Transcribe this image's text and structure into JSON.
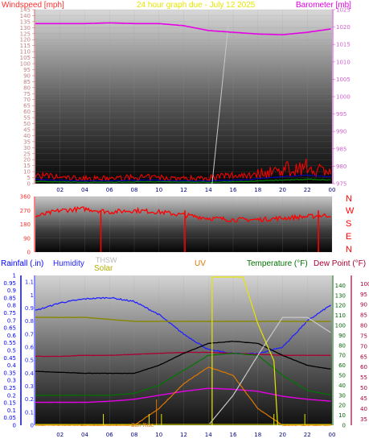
{
  "header": {
    "wind_label": "Windspeed [mph]",
    "title": "24 hour graph due - July 12 2025",
    "baro_label": "Barometer [mb]"
  },
  "legend": {
    "rainfall": "Rainfall (.in)",
    "humidity": "Humidity",
    "thsw": "THSW",
    "solar": "Solar",
    "uv": "UV",
    "temperature": "Temperature (°F)",
    "dew_point": "Dew Point (°F)",
    "sun_rise": "Sun Rise"
  },
  "direction_labels": [
    "N",
    "W",
    "S",
    "E",
    "N"
  ],
  "x_ticks": [
    "02",
    "04",
    "06",
    "08",
    "10",
    "12",
    "14",
    "16",
    "18",
    "20",
    "22",
    "00"
  ],
  "colors": {
    "wind": "#ff0000",
    "barometer": "#e600e6",
    "humidity": "#2222ff",
    "temperature": "#000000",
    "dew_point": "#aa0033",
    "solar": "#e6e600",
    "thsw": "#c8c8c8",
    "uv": "#e07800",
    "rain": "#0000ff",
    "left_axis_wind": "#d0a0a0",
    "right_axis_baro": "#e07ae0"
  },
  "chart_data": [
    {
      "type": "line",
      "title": "24 hour graph due - July 12 2025",
      "ylabel": "Windspeed [mph]",
      "y2label": "Barometer [mb]",
      "ylim": [
        0,
        145
      ],
      "y2lim": [
        975,
        1025
      ],
      "yticks": [
        0,
        5,
        10,
        15,
        20,
        25,
        30,
        35,
        40,
        45,
        50,
        55,
        60,
        65,
        70,
        75,
        80,
        85,
        90,
        95,
        100,
        105,
        110,
        115,
        120,
        125,
        130,
        135,
        140,
        145
      ],
      "y2ticks": [
        975,
        980,
        985,
        990,
        995,
        1000,
        1005,
        1010,
        1015,
        1020,
        1025
      ],
      "x_hours": [
        0,
        2,
        4,
        6,
        8,
        10,
        12,
        14,
        16,
        18,
        20,
        22,
        24
      ],
      "series": [
        {
          "name": "Windspeed",
          "axis": "left",
          "values": [
            5,
            4,
            3,
            3,
            4,
            4,
            3,
            3,
            4,
            6,
            9,
            11,
            9
          ]
        },
        {
          "name": "Gust",
          "axis": "left",
          "values": [
            8,
            6,
            5,
            5,
            6,
            6,
            5,
            6,
            8,
            10,
            14,
            16,
            12
          ]
        },
        {
          "name": "Barometer",
          "axis": "right",
          "values": [
            1021.0,
            1021.0,
            1021.0,
            1021.2,
            1021.0,
            1021.0,
            1020.4,
            1019.0,
            1018.5,
            1018.0,
            1017.8,
            1018.5,
            1019.5
          ]
        }
      ]
    },
    {
      "type": "line",
      "ylabel": "Wind direction",
      "yticks": [
        0,
        90,
        180,
        270,
        360
      ],
      "ylim": [
        0,
        360
      ],
      "x_hours": [
        0,
        2,
        4,
        6,
        8,
        10,
        12,
        14,
        16,
        18,
        20,
        22,
        24
      ],
      "series": [
        {
          "name": "Direction",
          "values": [
            230,
            270,
            280,
            260,
            270,
            260,
            240,
            220,
            210,
            210,
            220,
            230,
            240
          ]
        }
      ]
    },
    {
      "type": "line",
      "left_axis": {
        "label": "Rainfall (.in)",
        "ticks": [
          0,
          0.05,
          0.1,
          0.15,
          0.2,
          0.25,
          0.3,
          0.35,
          0.4,
          0.45,
          0.5,
          0.55,
          0.6,
          0.65,
          0.7,
          0.75,
          0.8,
          0.85,
          0.9,
          0.95,
          1
        ]
      },
      "humidity_axis": {
        "label": "Humidity",
        "ticks": [
          0,
          0.1,
          0.2,
          0.3,
          0.4,
          0.5,
          0.6,
          0.7,
          0.8,
          0.9,
          1,
          1.1
        ]
      },
      "temp_axis": {
        "label": "Temperature (°F)",
        "ticks": [
          0,
          10,
          20,
          30,
          40,
          50,
          60,
          70,
          80,
          90,
          100,
          110,
          120,
          130,
          140
        ],
        "ylim": [
          0,
          150
        ]
      },
      "dew_axis": {
        "label": "Dew Point (°F)",
        "ticks": [
          35,
          40,
          45,
          50,
          55,
          60,
          65,
          70,
          75,
          80,
          85,
          90,
          95,
          100
        ],
        "ylim": [
          32,
          104
        ]
      },
      "x_hours": [
        0,
        2,
        4,
        6,
        8,
        10,
        12,
        14,
        16,
        18,
        20,
        22,
        24
      ],
      "series": [
        {
          "name": "Humidity",
          "values": [
            0.88,
            0.94,
            0.97,
            0.98,
            0.95,
            0.85,
            0.7,
            0.58,
            0.55,
            0.55,
            0.6,
            0.8,
            0.93
          ]
        },
        {
          "name": "Temperature (°F)",
          "values": [
            54,
            53,
            52,
            52,
            52,
            60,
            72,
            82,
            84,
            82,
            70,
            60,
            56
          ]
        },
        {
          "name": "Dew Point (°F)",
          "values": [
            69,
            69,
            70,
            70,
            71,
            72,
            73,
            73,
            72,
            71,
            70,
            70,
            70
          ]
        },
        {
          "name": "THSW",
          "values": [
            null,
            null,
            null,
            null,
            null,
            null,
            null,
            0,
            30,
            70,
            108,
            108,
            92
          ]
        },
        {
          "name": "Solar",
          "values": [
            108,
            108,
            108,
            106,
            104,
            104,
            104,
            104,
            104,
            104,
            104,
            104,
            104
          ]
        },
        {
          "name": "UV",
          "values": [
            0,
            0,
            0,
            0,
            0,
            10,
            25,
            35,
            30,
            10,
            0,
            0,
            0
          ]
        }
      ]
    }
  ]
}
